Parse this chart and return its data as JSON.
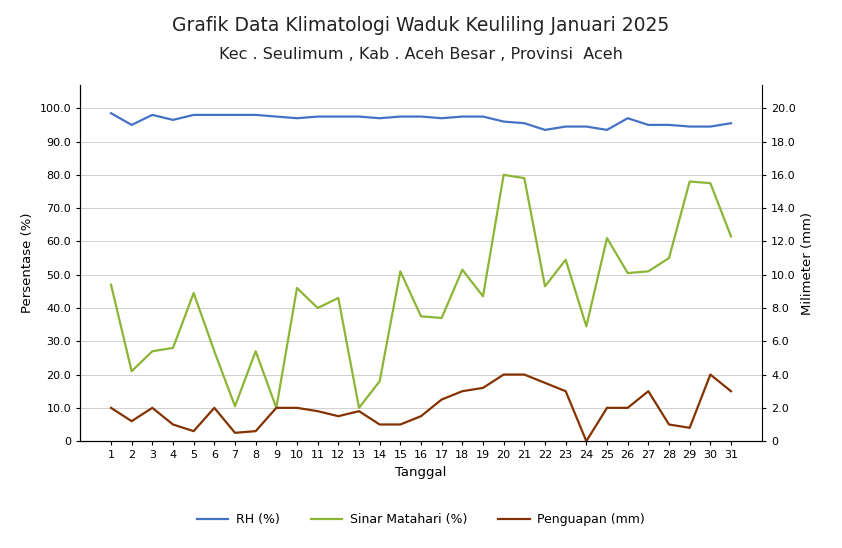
{
  "title_line1": "Grafik Data Klimatologi Waduk Keuliling Januari 2025",
  "title_line2": "Kec . Seulimum , Kab . Aceh Besar , Provinsi  Aceh",
  "xlabel": "Tanggal",
  "ylabel_left": "Persentase (%)",
  "ylabel_right": "Milimeter (mm)",
  "tanggal": [
    1,
    2,
    3,
    4,
    5,
    6,
    7,
    8,
    9,
    10,
    11,
    12,
    13,
    14,
    15,
    16,
    17,
    18,
    19,
    20,
    21,
    22,
    23,
    24,
    25,
    26,
    27,
    28,
    29,
    30,
    31
  ],
  "rh": [
    98.5,
    95.0,
    98.0,
    96.5,
    98.0,
    98.0,
    98.0,
    98.0,
    97.5,
    97.0,
    97.5,
    97.5,
    97.5,
    97.0,
    97.5,
    97.5,
    97.0,
    97.5,
    97.5,
    96.0,
    95.5,
    93.5,
    94.5,
    94.5,
    93.5,
    97.0,
    95.0,
    95.0,
    94.5,
    94.5,
    95.5
  ],
  "sinar_matahari": [
    47.0,
    21.0,
    27.0,
    28.0,
    44.5,
    27.0,
    10.5,
    27.0,
    10.0,
    46.0,
    40.0,
    43.0,
    10.0,
    18.0,
    51.0,
    37.5,
    37.0,
    51.5,
    43.5,
    80.0,
    79.0,
    46.5,
    54.5,
    34.5,
    61.0,
    50.5,
    51.0,
    55.0,
    78.0,
    77.5,
    61.5
  ],
  "penguapan": [
    2.0,
    1.2,
    2.0,
    1.0,
    0.6,
    2.0,
    0.5,
    0.6,
    2.0,
    2.0,
    1.8,
    1.5,
    1.8,
    1.0,
    1.0,
    1.5,
    2.5,
    3.0,
    3.2,
    4.0,
    4.0,
    3.5,
    3.0,
    0.0,
    2.0,
    2.0,
    3.0,
    1.0,
    0.8,
    4.0,
    3.0
  ],
  "rh_color": "#4472C4",
  "sinar_color": "#8DB535",
  "penguapan_color": "#833200",
  "background_color": "#FFFFFF",
  "ylim_left": [
    0,
    107
  ],
  "ylim_right": [
    0,
    21.4
  ],
  "yticks_left": [
    0,
    10.0,
    20.0,
    30.0,
    40.0,
    50.0,
    60.0,
    70.0,
    80.0,
    90.0,
    100.0
  ],
  "yticks_right": [
    0,
    2.0,
    4.0,
    6.0,
    8.0,
    10.0,
    12.0,
    14.0,
    16.0,
    18.0,
    20.0
  ],
  "legend_labels": [
    "RH (%)",
    "Sinar Matahari (%)",
    "Penguapan (mm)"
  ],
  "title_fontsize": 13.5,
  "subtitle_fontsize": 11.5,
  "axis_label_fontsize": 9.5,
  "tick_fontsize": 8,
  "legend_fontsize": 9
}
